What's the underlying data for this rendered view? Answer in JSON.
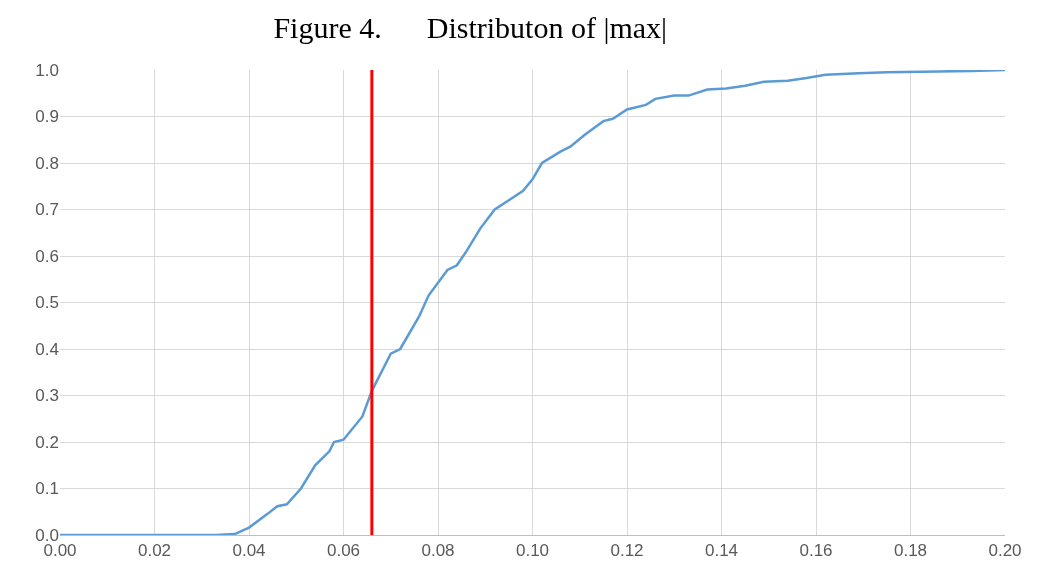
{
  "chart_data": {
    "type": "line",
    "title": "Figure 4.      Distributon of |max|",
    "series": [
      {
        "color": "#5b9bd5",
        "x": [
          0,
          0.033,
          0.037,
          0.04,
          0.044,
          0.046,
          0.048,
          0.051,
          0.054,
          0.057,
          0.058,
          0.06,
          0.064,
          0.066,
          0.069,
          0.07,
          0.072,
          0.076,
          0.078,
          0.082,
          0.084,
          0.086,
          0.089,
          0.092,
          0.095,
          0.098,
          0.1,
          0.102,
          0.106,
          0.108,
          0.111,
          0.115,
          0.117,
          0.12,
          0.124,
          0.126,
          0.13,
          0.133,
          0.137,
          0.141,
          0.145,
          0.149,
          0.154,
          0.158,
          0.162,
          0.169,
          0.175,
          0.186,
          0.193,
          0.2
        ],
        "values": [
          0,
          0,
          0.002,
          0.016,
          0.046,
          0.062,
          0.066,
          0.1,
          0.15,
          0.18,
          0.2,
          0.205,
          0.255,
          0.31,
          0.37,
          0.39,
          0.4,
          0.47,
          0.515,
          0.57,
          0.58,
          0.61,
          0.66,
          0.7,
          0.72,
          0.74,
          0.765,
          0.8,
          0.825,
          0.835,
          0.86,
          0.89,
          0.895,
          0.915,
          0.925,
          0.938,
          0.945,
          0.945,
          0.958,
          0.96,
          0.966,
          0.975,
          0.977,
          0.983,
          0.99,
          0.993,
          0.995,
          0.997,
          0.998,
          1.0
        ]
      }
    ],
    "ref_lines": [
      {
        "axis": "x",
        "value": 0.066,
        "color": "#ff0000"
      }
    ],
    "xlim": [
      0,
      0.2
    ],
    "xticks": [
      {
        "value": 0,
        "label": "0.00"
      },
      0.02,
      0.04,
      0.06,
      0.08,
      {
        "value": 0.1,
        "label": "0.10"
      },
      0.12,
      0.14,
      0.16,
      0.18,
      {
        "value": 0.2,
        "label": "0.20"
      }
    ],
    "ylim": [
      0,
      1
    ],
    "yticks": [
      {
        "value": 0,
        "label": "0.0"
      },
      0.1,
      0.2,
      0.3,
      0.4,
      0.5,
      0.6,
      0.7,
      0.8,
      0.9,
      {
        "value": 1,
        "label": "1.0"
      }
    ],
    "grid": true,
    "marker": "none",
    "line_style": "solid"
  }
}
